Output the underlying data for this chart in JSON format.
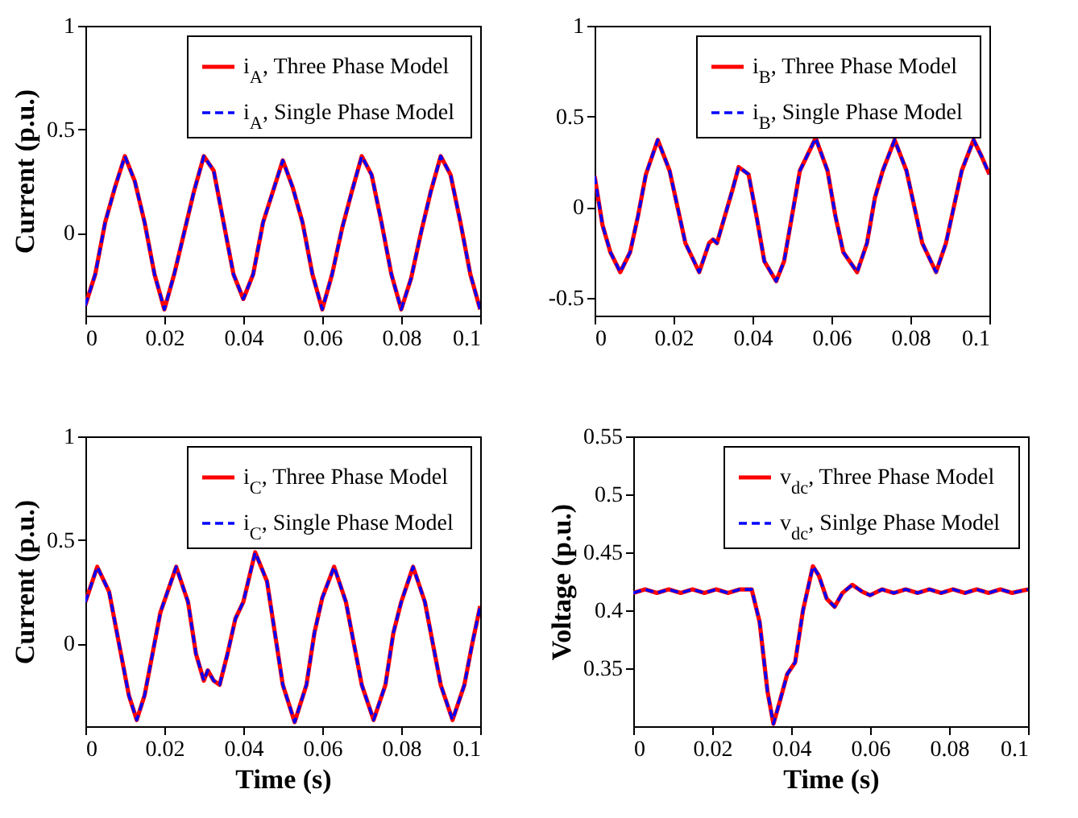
{
  "chart_data": [
    {
      "type": "line",
      "ylabel": "Current (p.u.)",
      "xlim": [
        0,
        0.1
      ],
      "xticks": [
        0,
        0.02,
        0.04,
        0.06,
        0.08,
        0.1
      ],
      "ylim": [
        -0.4,
        1
      ],
      "yticks": [
        0,
        0.5,
        1
      ],
      "legend": "top right",
      "grid": false,
      "x": [
        0,
        0.0025,
        0.005,
        0.0075,
        0.01,
        0.0125,
        0.015,
        0.0175,
        0.02,
        0.0225,
        0.025,
        0.0275,
        0.03,
        0.0325,
        0.035,
        0.0375,
        0.04,
        0.0425,
        0.045,
        0.0475,
        0.05,
        0.0525,
        0.055,
        0.0575,
        0.06,
        0.0625,
        0.065,
        0.0675,
        0.07,
        0.0725,
        0.075,
        0.0775,
        0.08,
        0.0825,
        0.085,
        0.0875,
        0.09,
        0.0925,
        0.095,
        0.0975,
        0.1
      ],
      "series": [
        {
          "name": "i$_{A}$, Three Phase Model",
          "color": "#ff0000",
          "line_style": "solid",
          "values": [
            -0.35,
            -0.2,
            0.05,
            0.22,
            0.37,
            0.25,
            0.05,
            -0.2,
            -0.37,
            -0.2,
            0.0,
            0.2,
            0.37,
            0.3,
            0.05,
            -0.2,
            -0.32,
            -0.2,
            0.05,
            0.2,
            0.35,
            0.22,
            0.05,
            -0.2,
            -0.37,
            -0.2,
            0.02,
            0.2,
            0.37,
            0.28,
            0.05,
            -0.2,
            -0.37,
            -0.22,
            0.0,
            0.2,
            0.37,
            0.28,
            0.05,
            -0.2,
            -0.37
          ]
        },
        {
          "name": "i$_{A}$, Single Phase Model",
          "color": "#0000ff",
          "line_style": "dashed",
          "values": [
            -0.35,
            -0.2,
            0.05,
            0.22,
            0.37,
            0.25,
            0.05,
            -0.2,
            -0.37,
            -0.2,
            0.0,
            0.2,
            0.37,
            0.3,
            0.05,
            -0.2,
            -0.32,
            -0.2,
            0.05,
            0.2,
            0.35,
            0.22,
            0.05,
            -0.2,
            -0.37,
            -0.2,
            0.02,
            0.2,
            0.37,
            0.28,
            0.05,
            -0.2,
            -0.37,
            -0.22,
            0.0,
            0.2,
            0.37,
            0.28,
            0.05,
            -0.2,
            -0.37
          ]
        }
      ]
    },
    {
      "type": "line",
      "xlim": [
        0,
        0.1
      ],
      "xticks": [
        0,
        0.02,
        0.04,
        0.06,
        0.08,
        0.1
      ],
      "ylim": [
        -0.6,
        1
      ],
      "yticks": [
        -0.5,
        0,
        0.5,
        1
      ],
      "legend": "top right",
      "grid": false,
      "x": [
        0,
        0.002,
        0.004,
        0.0065,
        0.009,
        0.011,
        0.013,
        0.016,
        0.019,
        0.021,
        0.023,
        0.0265,
        0.029,
        0.03,
        0.031,
        0.033,
        0.035,
        0.0365,
        0.039,
        0.041,
        0.043,
        0.046,
        0.048,
        0.05,
        0.052,
        0.056,
        0.059,
        0.061,
        0.063,
        0.0665,
        0.069,
        0.071,
        0.073,
        0.076,
        0.079,
        0.081,
        0.083,
        0.0865,
        0.089,
        0.091,
        0.093,
        0.096,
        0.098,
        0.1
      ],
      "series": [
        {
          "name": "i$_{B}$, Three Phase Model",
          "color": "#ff0000",
          "line_style": "solid",
          "values": [
            0.17,
            -0.1,
            -0.25,
            -0.36,
            -0.25,
            -0.05,
            0.18,
            0.37,
            0.2,
            0.0,
            -0.2,
            -0.36,
            -0.2,
            -0.18,
            -0.2,
            -0.05,
            0.1,
            0.22,
            0.18,
            -0.05,
            -0.3,
            -0.41,
            -0.3,
            -0.05,
            0.2,
            0.38,
            0.2,
            -0.05,
            -0.25,
            -0.36,
            -0.2,
            0.05,
            0.2,
            0.37,
            0.2,
            0.0,
            -0.2,
            -0.36,
            -0.2,
            0.0,
            0.2,
            0.37,
            0.28,
            0.18
          ]
        },
        {
          "name": "i$_{B}$, Single Phase Model",
          "color": "#0000ff",
          "line_style": "dashed",
          "values": [
            0.17,
            -0.1,
            -0.25,
            -0.36,
            -0.25,
            -0.05,
            0.18,
            0.37,
            0.2,
            0.0,
            -0.2,
            -0.36,
            -0.2,
            -0.18,
            -0.2,
            -0.05,
            0.1,
            0.22,
            0.18,
            -0.05,
            -0.3,
            -0.41,
            -0.3,
            -0.05,
            0.2,
            0.38,
            0.2,
            -0.05,
            -0.25,
            -0.36,
            -0.2,
            0.05,
            0.2,
            0.37,
            0.2,
            0.0,
            -0.2,
            -0.36,
            -0.2,
            0.0,
            0.2,
            0.37,
            0.28,
            0.18
          ]
        }
      ]
    },
    {
      "type": "line",
      "xlabel": "Time (s)",
      "ylabel": "Current (p.u.)",
      "xlim": [
        0,
        0.1
      ],
      "xticks": [
        0,
        0.02,
        0.04,
        0.06,
        0.08,
        0.1
      ],
      "ylim": [
        -0.4,
        1
      ],
      "yticks": [
        0,
        0.5,
        1
      ],
      "legend": "top right",
      "grid": false,
      "x": [
        0,
        0.003,
        0.006,
        0.009,
        0.011,
        0.013,
        0.015,
        0.017,
        0.019,
        0.023,
        0.026,
        0.028,
        0.03,
        0.031,
        0.0325,
        0.034,
        0.036,
        0.038,
        0.04,
        0.043,
        0.046,
        0.048,
        0.05,
        0.053,
        0.056,
        0.058,
        0.06,
        0.063,
        0.066,
        0.068,
        0.07,
        0.073,
        0.076,
        0.078,
        0.08,
        0.083,
        0.086,
        0.088,
        0.09,
        0.093,
        0.096,
        0.098,
        0.1
      ],
      "series": [
        {
          "name": "i$_{C}$, Three Phase Model",
          "color": "#ff0000",
          "line_style": "solid",
          "values": [
            0.2,
            0.37,
            0.25,
            -0.05,
            -0.25,
            -0.37,
            -0.25,
            -0.05,
            0.15,
            0.37,
            0.2,
            -0.05,
            -0.18,
            -0.13,
            -0.18,
            -0.2,
            -0.05,
            0.12,
            0.2,
            0.44,
            0.3,
            0.05,
            -0.2,
            -0.38,
            -0.2,
            0.05,
            0.22,
            0.37,
            0.2,
            0.0,
            -0.2,
            -0.37,
            -0.2,
            0.05,
            0.2,
            0.37,
            0.2,
            0.0,
            -0.2,
            -0.37,
            -0.2,
            0.0,
            0.18
          ]
        },
        {
          "name": "i$_{C}$, Single Phase Model",
          "color": "#0000ff",
          "line_style": "dashed",
          "values": [
            0.2,
            0.37,
            0.25,
            -0.05,
            -0.25,
            -0.37,
            -0.25,
            -0.05,
            0.15,
            0.37,
            0.2,
            -0.05,
            -0.18,
            -0.13,
            -0.18,
            -0.2,
            -0.05,
            0.12,
            0.2,
            0.44,
            0.3,
            0.05,
            -0.2,
            -0.38,
            -0.2,
            0.05,
            0.22,
            0.37,
            0.2,
            0.0,
            -0.2,
            -0.37,
            -0.2,
            0.05,
            0.2,
            0.37,
            0.2,
            0.0,
            -0.2,
            -0.37,
            -0.2,
            0.0,
            0.18
          ]
        }
      ]
    },
    {
      "type": "line",
      "xlabel": "Time (s)",
      "ylabel": "Voltage (p.u.)",
      "xlim": [
        0,
        0.1
      ],
      "xticks": [
        0,
        0.02,
        0.04,
        0.06,
        0.08,
        0.1
      ],
      "ylim": [
        0.3,
        0.55
      ],
      "yticks": [
        0.35,
        0.4,
        0.45,
        0.5,
        0.55
      ],
      "legend": "top right",
      "grid": false,
      "x": [
        0,
        0.003,
        0.006,
        0.009,
        0.012,
        0.015,
        0.018,
        0.021,
        0.024,
        0.027,
        0.03,
        0.032,
        0.034,
        0.0355,
        0.037,
        0.039,
        0.041,
        0.043,
        0.0455,
        0.047,
        0.049,
        0.051,
        0.053,
        0.0555,
        0.058,
        0.06,
        0.063,
        0.066,
        0.069,
        0.072,
        0.075,
        0.078,
        0.081,
        0.084,
        0.087,
        0.09,
        0.093,
        0.096,
        0.1
      ],
      "series": [
        {
          "name": "v$_{dc}$, Three Phase Model",
          "color": "#ff0000",
          "line_style": "solid",
          "values": [
            0.415,
            0.418,
            0.415,
            0.418,
            0.415,
            0.418,
            0.415,
            0.418,
            0.415,
            0.418,
            0.418,
            0.39,
            0.33,
            0.302,
            0.32,
            0.345,
            0.355,
            0.4,
            0.438,
            0.43,
            0.41,
            0.403,
            0.415,
            0.422,
            0.416,
            0.413,
            0.418,
            0.415,
            0.418,
            0.415,
            0.418,
            0.415,
            0.418,
            0.415,
            0.418,
            0.415,
            0.418,
            0.415,
            0.418
          ]
        },
        {
          "name": "v$_{dc}$, Sinlge Phase Model",
          "color": "#0000ff",
          "line_style": "dashed",
          "values": [
            0.415,
            0.418,
            0.415,
            0.418,
            0.415,
            0.418,
            0.415,
            0.418,
            0.415,
            0.418,
            0.418,
            0.39,
            0.33,
            0.302,
            0.32,
            0.345,
            0.355,
            0.4,
            0.438,
            0.43,
            0.41,
            0.403,
            0.415,
            0.422,
            0.416,
            0.413,
            0.418,
            0.415,
            0.418,
            0.415,
            0.418,
            0.415,
            0.418,
            0.415,
            0.418,
            0.415,
            0.418,
            0.415,
            0.418
          ]
        }
      ]
    }
  ]
}
